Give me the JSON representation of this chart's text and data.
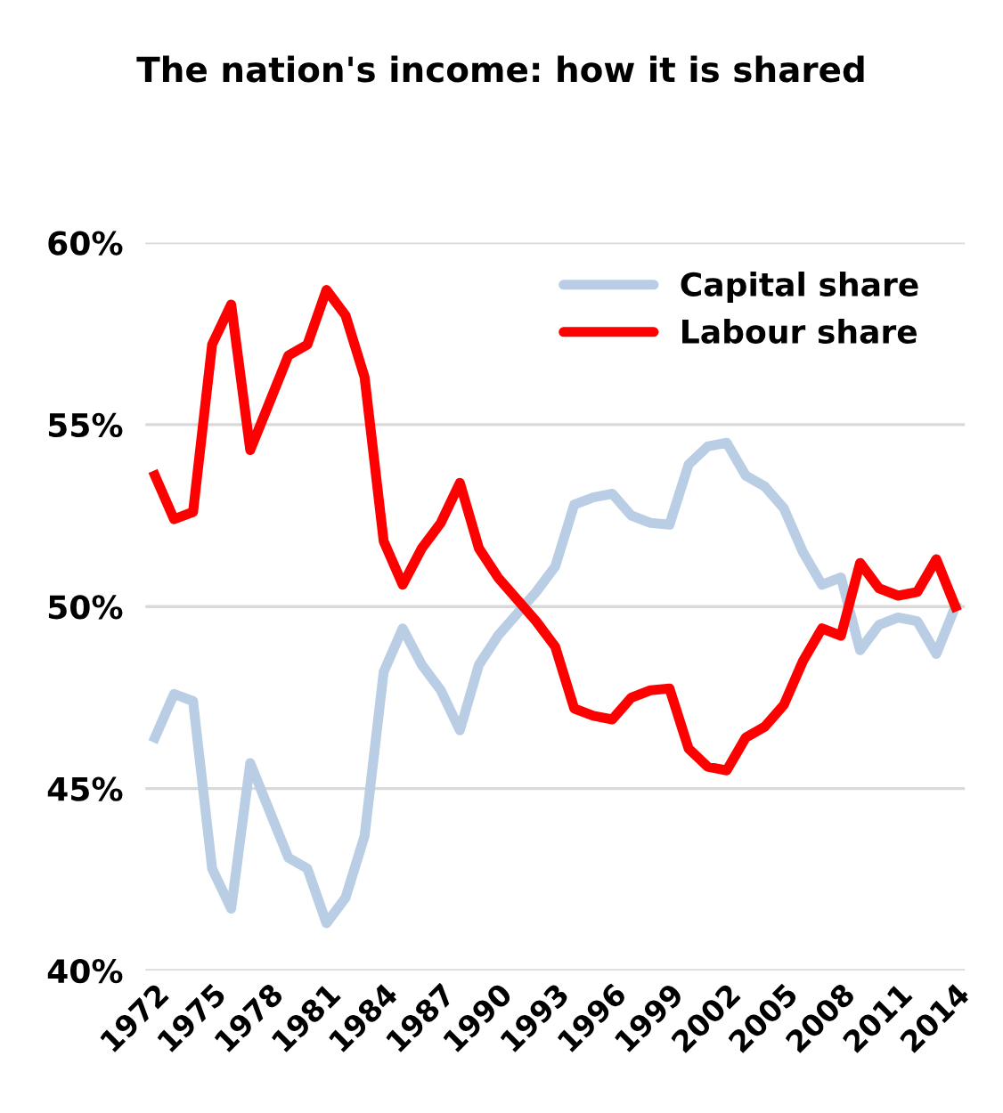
{
  "chart_data": {
    "type": "line",
    "title": "The nation's income: how it is shared",
    "categories": [
      "1972",
      null,
      null,
      "1975",
      null,
      null,
      "1978",
      null,
      null,
      "1981",
      null,
      null,
      "1984",
      null,
      null,
      "1987",
      null,
      null,
      "1990",
      null,
      null,
      "1993",
      null,
      null,
      "1996",
      null,
      null,
      "1999",
      null,
      null,
      "2002",
      null,
      null,
      "2005",
      null,
      null,
      "2008",
      null,
      null,
      "2011",
      null,
      null,
      "2014"
    ],
    "series": [
      {
        "name": "Capital share",
        "color": "#b9cde5",
        "values": [
          46.4,
          47.6,
          47.4,
          42.8,
          41.7,
          45.7,
          44.4,
          43.1,
          42.8,
          41.3,
          42.0,
          43.7,
          48.2,
          49.4,
          48.4,
          47.7,
          46.6,
          48.4,
          49.2,
          49.8,
          50.4,
          51.1,
          52.8,
          53.0,
          53.1,
          52.5,
          52.3,
          52.25,
          53.9,
          54.4,
          54.5,
          53.6,
          53.3,
          52.7,
          51.5,
          50.6,
          50.8,
          48.8,
          49.5,
          49.7,
          49.6,
          48.7,
          50.0
        ]
      },
      {
        "name": "Labour share",
        "color": "#ff0000",
        "values": [
          53.6,
          52.4,
          52.6,
          57.2,
          58.3,
          54.3,
          55.6,
          56.9,
          57.2,
          58.7,
          58.0,
          56.3,
          51.8,
          50.6,
          51.6,
          52.3,
          53.4,
          51.6,
          50.8,
          50.2,
          49.6,
          48.9,
          47.2,
          47.0,
          46.9,
          47.5,
          47.7,
          47.75,
          46.1,
          45.6,
          45.5,
          46.4,
          46.7,
          47.3,
          48.5,
          49.4,
          49.2,
          51.2,
          50.5,
          50.3,
          50.4,
          51.3,
          50.0
        ]
      }
    ],
    "ylim": [
      40,
      60
    ],
    "yticks": [
      {
        "value": 40,
        "label": "40%"
      },
      {
        "value": 45,
        "label": "45%"
      },
      {
        "value": 50,
        "label": "50%"
      },
      {
        "value": 55,
        "label": "55%"
      },
      {
        "value": 60,
        "label": "60%"
      }
    ],
    "grid": "y",
    "legend": "top right",
    "marker": "none",
    "line_style": "solid"
  }
}
